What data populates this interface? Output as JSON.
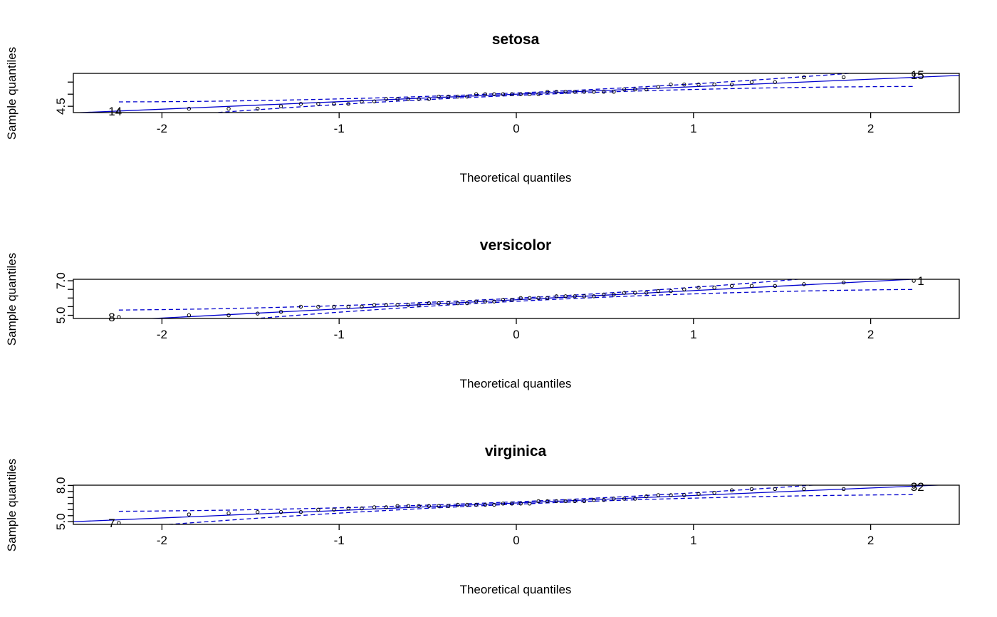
{
  "colors": {
    "reference_line": "#0000CD",
    "envelope": "#0000CD",
    "points": "#000000",
    "frame": "#000000"
  },
  "chart_data": [
    {
      "type": "scatter",
      "subtype": "qq-plot",
      "title": "setosa",
      "xlabel": "Theoretical quantiles",
      "ylabel": "Sample quantiles",
      "xlim": [
        -2.5,
        2.5
      ],
      "ylim": [
        4.3,
        5.8
      ],
      "xticks": [
        -2,
        -1,
        0,
        1,
        2
      ],
      "yticks": [
        4.5,
        5.0,
        5.5
      ],
      "ytick_labels_shown": [
        "4.5"
      ],
      "labeled_points": [
        {
          "label": "14",
          "x": -2.33,
          "y": 4.3
        },
        {
          "label": "15",
          "x": 2.33,
          "y": 5.8
        }
      ],
      "sample_values": [
        4.3,
        4.4,
        4.4,
        4.4,
        4.5,
        4.6,
        4.6,
        4.6,
        4.6,
        4.7,
        4.7,
        4.8,
        4.8,
        4.8,
        4.8,
        4.8,
        4.9,
        4.9,
        4.9,
        4.9,
        5.0,
        5.0,
        5.0,
        5.0,
        5.0,
        5.0,
        5.0,
        5.0,
        5.1,
        5.1,
        5.1,
        5.1,
        5.1,
        5.1,
        5.1,
        5.1,
        5.2,
        5.2,
        5.2,
        5.3,
        5.4,
        5.4,
        5.4,
        5.4,
        5.4,
        5.5,
        5.5,
        5.7,
        5.7,
        5.8
      ],
      "reference_line": {
        "intercept": 5.0,
        "slope": 0.31
      },
      "envelope": {
        "center_intercept": 5.0,
        "center_slope": 0.31,
        "half_width_at_0": 0.05,
        "half_width_growth": 0.065
      }
    },
    {
      "type": "scatter",
      "subtype": "qq-plot",
      "title": "versicolor",
      "xlabel": "Theoretical quantiles",
      "ylabel": "Sample quantiles",
      "xlim": [
        -2.5,
        2.5
      ],
      "ylim": [
        4.9,
        7.0
      ],
      "xticks": [
        -2,
        -1,
        0,
        1,
        2
      ],
      "yticks": [
        5.0,
        5.5,
        6.0,
        6.5,
        7.0
      ],
      "ytick_labels_shown": [
        "5.0",
        "7.0"
      ],
      "labeled_points": [
        {
          "label": "8",
          "x": -2.33,
          "y": 4.9
        },
        {
          "label": "1",
          "x": 2.33,
          "y": 7.0
        }
      ],
      "sample_values": [
        4.9,
        5.0,
        5.0,
        5.1,
        5.2,
        5.5,
        5.5,
        5.5,
        5.5,
        5.5,
        5.6,
        5.6,
        5.6,
        5.6,
        5.6,
        5.7,
        5.7,
        5.7,
        5.7,
        5.7,
        5.8,
        5.8,
        5.8,
        5.9,
        5.9,
        6.0,
        6.0,
        6.0,
        6.0,
        6.1,
        6.1,
        6.1,
        6.1,
        6.1,
        6.2,
        6.2,
        6.3,
        6.3,
        6.3,
        6.4,
        6.4,
        6.5,
        6.6,
        6.6,
        6.7,
        6.7,
        6.7,
        6.8,
        6.9,
        7.0
      ],
      "reference_line": {
        "intercept": 5.9,
        "slope": 0.53
      },
      "envelope": {
        "center_intercept": 5.9,
        "center_slope": 0.53,
        "half_width_at_0": 0.09,
        "half_width_growth": 0.1
      }
    },
    {
      "type": "scatter",
      "subtype": "qq-plot",
      "title": "virginica",
      "xlabel": "Theoretical quantiles",
      "ylabel": "Sample quantiles",
      "xlim": [
        -2.5,
        2.5
      ],
      "ylim": [
        4.9,
        7.9
      ],
      "xticks": [
        -2,
        -1,
        0,
        1,
        2
      ],
      "yticks": [
        5.0,
        5.5,
        6.0,
        6.5,
        7.0,
        7.5,
        8.0
      ],
      "ytick_labels_shown": [
        "5.0",
        "8.0"
      ],
      "labeled_points": [
        {
          "label": "7",
          "x": -2.33,
          "y": 4.9
        },
        {
          "label": "32",
          "x": 2.33,
          "y": 7.9
        }
      ],
      "sample_values": [
        4.9,
        5.6,
        5.7,
        5.8,
        5.8,
        5.8,
        6.0,
        6.0,
        6.1,
        6.1,
        6.2,
        6.2,
        6.3,
        6.3,
        6.3,
        6.3,
        6.3,
        6.3,
        6.4,
        6.4,
        6.4,
        6.4,
        6.4,
        6.5,
        6.5,
        6.5,
        6.5,
        6.7,
        6.7,
        6.7,
        6.7,
        6.7,
        6.7,
        6.8,
        6.8,
        6.9,
        6.9,
        6.9,
        7.1,
        7.2,
        7.2,
        7.2,
        7.3,
        7.4,
        7.6,
        7.7,
        7.7,
        7.7,
        7.7,
        7.9
      ],
      "reference_line": {
        "intercept": 6.55,
        "slope": 0.62
      },
      "envelope": {
        "center_intercept": 6.55,
        "center_slope": 0.62,
        "half_width_at_0": 0.1,
        "half_width_growth": 0.12
      }
    }
  ]
}
